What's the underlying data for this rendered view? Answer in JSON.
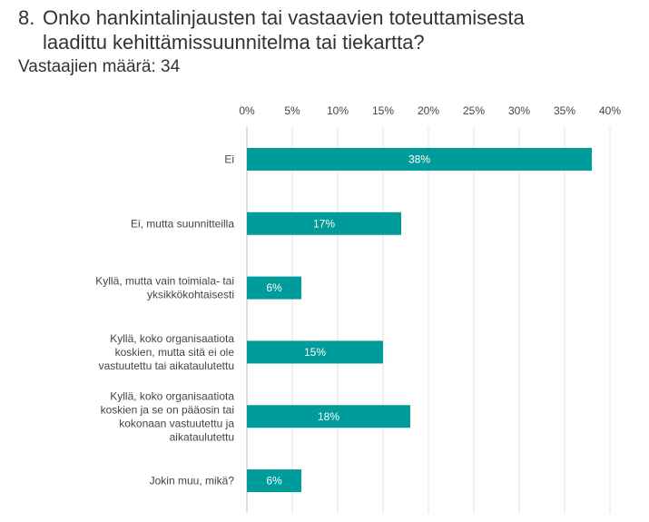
{
  "header": {
    "number": "8.",
    "title_line1": "Onko hankintalinjausten tai vastaavien toteuttamisesta",
    "title_line2": "laadittu kehittämissuunnitelma tai tiekartta?",
    "respondents": "Vastaajien määrä: 34"
  },
  "chart_data": {
    "type": "bar",
    "orientation": "horizontal",
    "title": "Onko hankintalinjausten tai vastaavien toteuttamisesta laadittu kehittämissuunnitelma tai tiekartta?",
    "xlabel": "",
    "ylabel": "",
    "xlim": [
      0,
      40
    ],
    "ticks": [
      "0%",
      "5%",
      "10%",
      "15%",
      "20%",
      "25%",
      "30%",
      "35%",
      "40%"
    ],
    "grid": true,
    "bar_color": "#009B9B",
    "categories": [
      [
        "Ei"
      ],
      [
        "Ei, mutta suunnitteilla"
      ],
      [
        "Kyllä, mutta vain toimiala- tai",
        "yksikkökohtaisesti"
      ],
      [
        "Kyllä, koko organisaatiota",
        "koskien, mutta sitä ei ole",
        "vastuutettu tai aikataulutettu"
      ],
      [
        "Kyllä, koko organisaatiota",
        "koskien ja se on pääosin tai",
        "kokonaan vastuutettu ja",
        "aikataulutettu"
      ],
      [
        "Jokin muu, mikä?"
      ]
    ],
    "values": [
      38,
      17,
      6,
      15,
      18,
      6
    ],
    "data_labels": [
      "38%",
      "17%",
      "6%",
      "15%",
      "18%",
      "6%"
    ]
  }
}
